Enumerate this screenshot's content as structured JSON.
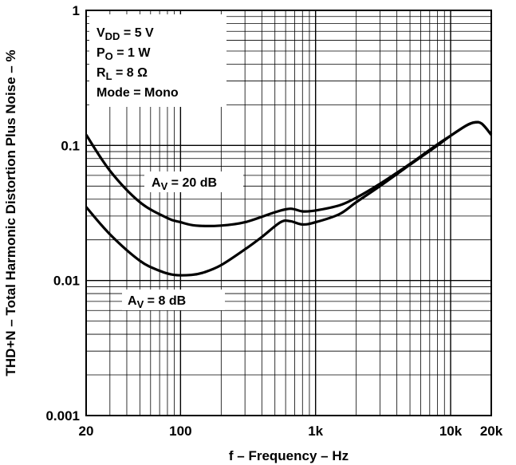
{
  "chart_data": {
    "type": "line",
    "xscale": "log",
    "yscale": "log",
    "xlim": [
      20,
      20000
    ],
    "ylim": [
      0.001,
      1
    ],
    "grid": true,
    "xlabel": "f – Frequency – Hz",
    "ylabel": "THD+N – Total Harmonic Distortion Plus Noise – %",
    "xticks": [
      {
        "value": 20,
        "label": "20"
      },
      {
        "value": 100,
        "label": "100"
      },
      {
        "value": 1000,
        "label": "1k"
      },
      {
        "value": 10000,
        "label": "10k"
      },
      {
        "value": 20000,
        "label": "20k"
      }
    ],
    "yticks": [
      {
        "value": 1,
        "label": "1"
      },
      {
        "value": 0.1,
        "label": "0.1"
      },
      {
        "value": 0.01,
        "label": "0.01"
      },
      {
        "value": 0.001,
        "label": "0.001"
      }
    ],
    "conditions": {
      "vdd": {
        "sym": "V",
        "sub": "DD",
        "rest": " = 5 V"
      },
      "po": {
        "sym": "P",
        "sub": "O",
        "rest": " = 1 W"
      },
      "rl": {
        "sym": "R",
        "sub": "L",
        "rest": " = 8 Ω"
      },
      "mode": "Mode = Mono"
    },
    "series": [
      {
        "label": {
          "sym": "A",
          "sub": "V",
          "rest": " = 20 dB"
        },
        "points": [
          [
            20,
            0.12
          ],
          [
            30,
            0.065
          ],
          [
            50,
            0.038
          ],
          [
            80,
            0.029
          ],
          [
            100,
            0.027
          ],
          [
            130,
            0.0255
          ],
          [
            200,
            0.0255
          ],
          [
            300,
            0.027
          ],
          [
            500,
            0.032
          ],
          [
            650,
            0.034
          ],
          [
            800,
            0.0325
          ],
          [
            1000,
            0.033
          ],
          [
            1500,
            0.036
          ],
          [
            2000,
            0.041
          ],
          [
            3000,
            0.052
          ],
          [
            5000,
            0.073
          ],
          [
            8000,
            0.102
          ],
          [
            10000,
            0.118
          ],
          [
            13000,
            0.14
          ],
          [
            15000,
            0.148
          ],
          [
            17000,
            0.145
          ],
          [
            20000,
            0.12
          ]
        ]
      },
      {
        "label": {
          "sym": "A",
          "sub": "V",
          "rest": " = 8 dB"
        },
        "points": [
          [
            20,
            0.035
          ],
          [
            30,
            0.022
          ],
          [
            50,
            0.014
          ],
          [
            70,
            0.0118
          ],
          [
            90,
            0.011
          ],
          [
            120,
            0.011
          ],
          [
            150,
            0.0115
          ],
          [
            200,
            0.013
          ],
          [
            300,
            0.017
          ],
          [
            400,
            0.021
          ],
          [
            550,
            0.027
          ],
          [
            650,
            0.0275
          ],
          [
            800,
            0.026
          ],
          [
            1000,
            0.027
          ],
          [
            1500,
            0.031
          ],
          [
            2000,
            0.038
          ],
          [
            3000,
            0.05
          ],
          [
            5000,
            0.072
          ],
          [
            8000,
            0.1
          ],
          [
            10000,
            0.118
          ],
          [
            13000,
            0.14
          ],
          [
            15000,
            0.148
          ],
          [
            17000,
            0.145
          ],
          [
            20000,
            0.12
          ]
        ]
      }
    ]
  }
}
